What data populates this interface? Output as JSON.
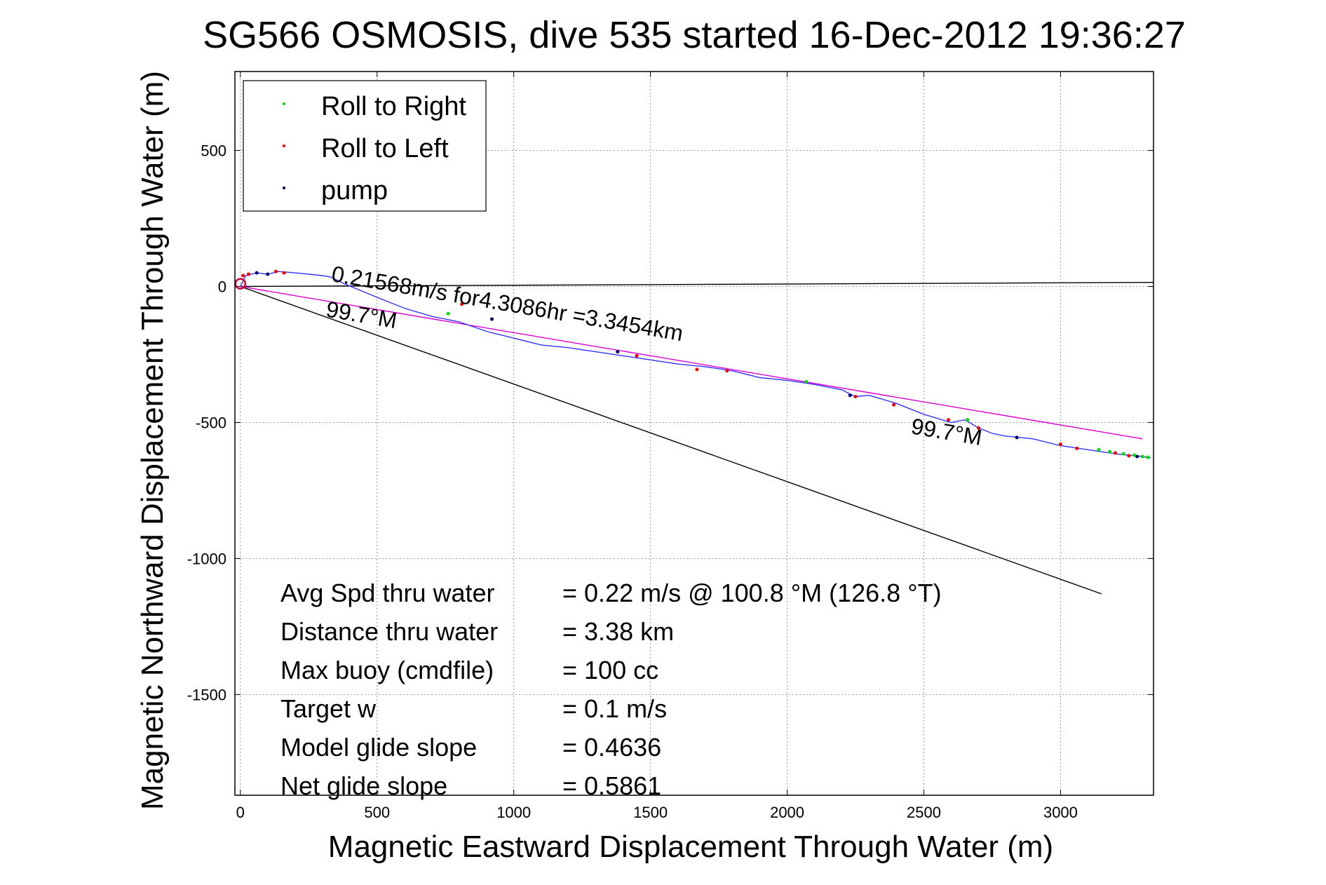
{
  "chart_data": {
    "type": "line",
    "title": "SG566 OSMOSIS, dive 535 started 16-Dec-2012 19:36:27",
    "xlabel": "Magnetic Eastward Displacement Through Water (m)",
    "ylabel": "Magnetic Northward Displacement Through Water (m)",
    "xlim": [
      -20,
      3340
    ],
    "ylim": [
      -1870,
      790
    ],
    "x_ticks": [
      0,
      500,
      1000,
      1500,
      2000,
      2500,
      3000
    ],
    "y_ticks": [
      500,
      0,
      -500,
      -1000,
      -1500
    ],
    "grid": true,
    "legend_position": "top-left",
    "legend": [
      {
        "name": "Roll to Right",
        "color": "#00dd00"
      },
      {
        "name": "Roll to Left",
        "color": "#ee0000"
      },
      {
        "name": "pump",
        "color": "#000066"
      }
    ],
    "track": {
      "color": "#3333ff",
      "x": [
        0,
        20,
        60,
        100,
        140,
        200,
        300,
        330,
        380,
        500,
        600,
        700,
        800,
        900,
        1000,
        1100,
        1200,
        1300,
        1400,
        1500,
        1600,
        1700,
        1800,
        1900,
        2000,
        2100,
        2200,
        2250,
        2300,
        2400,
        2500,
        2600,
        2650,
        2700,
        2750,
        2800,
        2850,
        2900,
        3000,
        3100,
        3200,
        3300,
        3330
      ],
      "y": [
        0,
        40,
        50,
        45,
        55,
        50,
        40,
        35,
        10,
        -40,
        -80,
        -110,
        -130,
        -165,
        -190,
        -215,
        -225,
        -240,
        -255,
        -270,
        -285,
        -295,
        -310,
        -335,
        -345,
        -360,
        -380,
        -405,
        -400,
        -430,
        -470,
        -500,
        -490,
        -520,
        -540,
        -550,
        -555,
        -560,
        -585,
        -600,
        -615,
        -625,
        -630
      ]
    },
    "roll_right_points": {
      "x": [
        760,
        2070,
        2660,
        3140,
        3180,
        3230,
        3270,
        3300,
        3320
      ],
      "y": [
        -100,
        -350,
        -490,
        -600,
        -607,
        -615,
        -620,
        -625,
        -628
      ]
    },
    "roll_left_points": {
      "x": [
        10,
        30,
        130,
        160,
        810,
        1450,
        1670,
        1780,
        2250,
        2390,
        2590,
        2700,
        3000,
        3060,
        3200,
        3250
      ],
      "y": [
        40,
        45,
        55,
        50,
        -65,
        -255,
        -305,
        -310,
        -405,
        -435,
        -490,
        -520,
        -580,
        -595,
        -612,
        -622
      ]
    },
    "pump_points": {
      "x": [
        60,
        100,
        920,
        1380,
        2230,
        2840,
        3280
      ],
      "y": [
        50,
        45,
        -120,
        -240,
        -400,
        -555,
        -625
      ]
    },
    "track_start": {
      "x": 0,
      "y": 10,
      "color": "#cc0033"
    },
    "net_line": {
      "color": "#dd00cc",
      "x": [
        0,
        3300
      ],
      "y": [
        0,
        -560
      ]
    },
    "heading_line": {
      "color": "#000000",
      "x": [
        0,
        3150
      ],
      "y": [
        0,
        -1130
      ]
    },
    "magnetic_north_line": {
      "color": "#000000",
      "x": [
        0,
        3340
      ],
      "y": [
        0,
        15
      ]
    },
    "annotations": [
      {
        "text": "0.21568m/s for4.3086hr =3.3454km",
        "x": 330,
        "y": 20,
        "rotate": 9.7
      },
      {
        "text": "99.7°M",
        "x": 310,
        "y": -110,
        "rotate": 9.7
      },
      {
        "text": "99.7°M",
        "x": 2450,
        "y": -540,
        "rotate": 9.7
      }
    ],
    "stats": [
      {
        "label": "Avg Spd thru water",
        "value": "=  0.22 m/s @ 100.8 °M (126.8 °T)"
      },
      {
        "label": "Distance thru water",
        "value": "=  3.38 km"
      },
      {
        "label": "Max buoy (cmdfile)",
        "value": "= 100 cc"
      },
      {
        "label": "Target w",
        "value": "= 0.1 m/s"
      },
      {
        "label": "Model glide slope",
        "value": "= 0.4636"
      },
      {
        "label": "Net glide slope",
        "value": "= 0.5861"
      }
    ]
  }
}
